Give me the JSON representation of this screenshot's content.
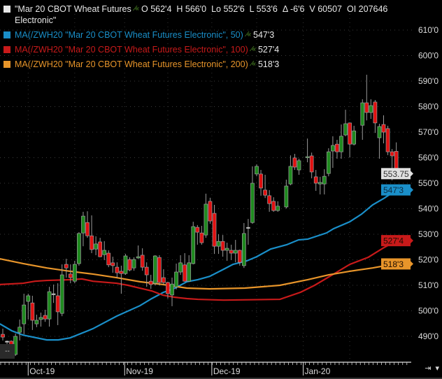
{
  "legend": {
    "main": {
      "color": "#e6e6e6",
      "text_line1": "\"Mar 20 CBOT Wheat Futures",
      "text_line2": "Electronic\"",
      "icon": "trend-indicator-icon",
      "stats": [
        {
          "key": "O",
          "value": "562'4"
        },
        {
          "key": "H",
          "value": "566'0"
        },
        {
          "key": "Lo",
          "value": "552'6"
        },
        {
          "key": "L",
          "value": "553'6"
        },
        {
          "key": "Δ",
          "value": "-6'6"
        },
        {
          "key": "V",
          "value": "60507"
        },
        {
          "key": "OI",
          "value": "207646"
        }
      ]
    },
    "ma": [
      {
        "label": "MA(/ZWH20 \"Mar 20 CBOT Wheat Futures Electronic\", 50)",
        "value": "547'3",
        "color": "#1a8fc9"
      },
      {
        "label": "MA(/ZWH20 \"Mar 20 CBOT Wheat Futures Electronic\", 100)",
        "value": "527'4",
        "color": "#c81a1a"
      },
      {
        "label": "MA(/ZWH20 \"Mar 20 CBOT Wheat Futures Electronic\", 200)",
        "value": "518'3",
        "color": "#e8952a"
      }
    ]
  },
  "corner_label": "--",
  "bottom_controls": {
    "zoom_icon": "expand-axis-icon",
    "menu_icon": "dropdown-arrow-icon",
    "zoom_glyph": "⇥",
    "menu_glyph": "▾"
  },
  "chart_data": {
    "type": "candlestick",
    "ylim": [
      486,
      612
    ],
    "y_ticks": [
      "610'0",
      "600'0",
      "590'0",
      "580'0",
      "570'0",
      "560'0",
      "550'0",
      "540'0",
      "530'0",
      "520'0",
      "510'0",
      "500'0",
      "490'0"
    ],
    "y_tick_values": [
      610,
      600,
      590,
      580,
      570,
      560,
      550,
      540,
      530,
      520,
      510,
      500,
      490
    ],
    "x_labels": [
      {
        "label": "Oct-19",
        "at": 6
      },
      {
        "label": "Nov-19",
        "at": 28.8
      },
      {
        "label": "Dec-19",
        "at": 49.4
      },
      {
        "label": "Jan-20",
        "at": 71
      }
    ],
    "up_color": "#1f8a1f",
    "down_color": "#e01010",
    "last_price": {
      "label": "553.75",
      "value": 553.75,
      "color": "#e0e0e0"
    },
    "ma_markers": [
      {
        "label": "547'3",
        "value": 547.375,
        "color": "#1a8fc9"
      },
      {
        "label": "527'4",
        "value": 527.5,
        "color": "#c81a1a"
      },
      {
        "label": "518'3",
        "value": 518.375,
        "color": "#e8952a"
      }
    ],
    "candles": [
      [
        490.8,
        493.0,
        488.4,
        489.7
      ],
      [
        488.1,
        488.4,
        486.2,
        488.1
      ],
      [
        488.1,
        488.4,
        484.0,
        485.6
      ],
      [
        482.9,
        491.1,
        482.3,
        490.0
      ],
      [
        491.6,
        496.6,
        488.4,
        493.6
      ],
      [
        494.9,
        506.7,
        490.8,
        502.3
      ],
      [
        503.7,
        506.7,
        496.6,
        505.9
      ],
      [
        503.1,
        505.9,
        492.5,
        496.3
      ],
      [
        494.9,
        498.5,
        493.6,
        496.3
      ],
      [
        496.6,
        499.3,
        493.8,
        497.4
      ],
      [
        498.2,
        500.4,
        495.7,
        496.8
      ],
      [
        496.8,
        509.4,
        493.8,
        507.5
      ],
      [
        506.7,
        510.3,
        503.1,
        506.7
      ],
      [
        505.9,
        510.8,
        494.4,
        499.6
      ],
      [
        499.0,
        518.2,
        497.9,
        514.1
      ],
      [
        518.2,
        520.4,
        513.0,
        516.8
      ],
      [
        514.4,
        518.2,
        510.8,
        513.0
      ],
      [
        511.6,
        519.6,
        510.8,
        518.2
      ],
      [
        518.5,
        530.8,
        517.7,
        530.3
      ],
      [
        530.5,
        538.8,
        525.3,
        537.1
      ],
      [
        534.6,
        539.0,
        528.6,
        529.4
      ],
      [
        529.4,
        537.4,
        522.6,
        524.0
      ],
      [
        524.2,
        529.2,
        521.8,
        526.2
      ],
      [
        527.0,
        528.6,
        521.0,
        521.2
      ],
      [
        522.0,
        527.3,
        519.9,
        523.7
      ],
      [
        522.6,
        523.7,
        517.1,
        518.0
      ],
      [
        518.8,
        521.2,
        514.9,
        517.7
      ],
      [
        517.1,
        519.0,
        513.0,
        514.9
      ],
      [
        515.5,
        517.7,
        506.7,
        514.6
      ],
      [
        514.6,
        522.3,
        514.1,
        521.5
      ],
      [
        520.1,
        521.0,
        515.5,
        516.0
      ],
      [
        516.8,
        521.0,
        515.7,
        520.1
      ],
      [
        520.7,
        525.6,
        520.4,
        521.2
      ],
      [
        521.8,
        524.5,
        515.7,
        517.1
      ],
      [
        517.1,
        519.0,
        509.4,
        514.1
      ],
      [
        511.6,
        514.1,
        508.6,
        510.3
      ],
      [
        510.8,
        521.8,
        510.0,
        521.5
      ],
      [
        520.9,
        521.8,
        510.0,
        511.1
      ],
      [
        513.0,
        516.3,
        510.3,
        511.1
      ],
      [
        511.1,
        511.4,
        504.8,
        506.7
      ],
      [
        506.2,
        513.0,
        501.8,
        510.5
      ],
      [
        509.4,
        518.5,
        508.4,
        515.2
      ],
      [
        515.2,
        521.8,
        514.1,
        518.8
      ],
      [
        518.0,
        522.6,
        511.4,
        511.6
      ],
      [
        511.6,
        521.8,
        511.4,
        518.8
      ],
      [
        518.5,
        534.9,
        518.2,
        533.0
      ],
      [
        532.7,
        533.6,
        525.9,
        530.8
      ],
      [
        530.5,
        533.3,
        525.9,
        526.7
      ],
      [
        529.7,
        545.9,
        528.6,
        541.8
      ],
      [
        542.9,
        544.3,
        534.1,
        535.2
      ],
      [
        538.2,
        541.5,
        522.3,
        525.3
      ],
      [
        525.3,
        530.0,
        522.3,
        527.2
      ],
      [
        527.2,
        529.7,
        521.2,
        523.7
      ],
      [
        523.7,
        526.7,
        519.6,
        524.5
      ],
      [
        523.7,
        525.9,
        519.9,
        522.6
      ],
      [
        522.6,
        527.8,
        519.0,
        523.7
      ],
      [
        523.7,
        524.0,
        517.7,
        519.0
      ],
      [
        517.7,
        534.4,
        516.8,
        530.3
      ],
      [
        532.7,
        536.0,
        525.9,
        532.7
      ],
      [
        534.6,
        556.6,
        534.1,
        550.0
      ],
      [
        553.6,
        557.4,
        552.7,
        556.6
      ],
      [
        553.6,
        555.2,
        545.1,
        548.1
      ],
      [
        547.3,
        553.3,
        544.2,
        545.3
      ],
      [
        545.1,
        547.3,
        538.8,
        542.0
      ],
      [
        542.9,
        544.5,
        538.8,
        539.3
      ],
      [
        539.3,
        542.9,
        538.8,
        541.0
      ],
      null,
      [
        540.7,
        551.4,
        540.1,
        548.9
      ],
      [
        549.7,
        560.9,
        549.2,
        556.6
      ],
      [
        559.9,
        561.5,
        555.2,
        556.3
      ],
      [
        555.2,
        559.6,
        553.3,
        558.8
      ],
      null,
      [
        560.1,
        567.5,
        558.2,
        560.4
      ],
      [
        560.7,
        562.0,
        551.9,
        554.4
      ],
      [
        552.5,
        555.2,
        547.0,
        550.0
      ],
      [
        549.7,
        552.5,
        545.6,
        550.3
      ],
      [
        549.7,
        555.5,
        545.6,
        552.7
      ],
      [
        553.8,
        563.7,
        552.7,
        562.3
      ],
      [
        562.6,
        568.4,
        556.0,
        564.8
      ],
      [
        565.3,
        567.0,
        559.6,
        562.3
      ],
      [
        562.3,
        573.0,
        559.6,
        568.4
      ],
      [
        568.9,
        578.8,
        568.4,
        573.3
      ],
      [
        573.6,
        573.8,
        560.1,
        565.3
      ],
      [
        565.3,
        572.5,
        564.8,
        570.5
      ],
      null,
      [
        572.7,
        582.9,
        567.0,
        581.5
      ],
      [
        581.5,
        592.5,
        574.6,
        577.7
      ],
      [
        577.7,
        582.9,
        575.2,
        580.4
      ],
      [
        581.8,
        582.6,
        569.7,
        573.6
      ],
      [
        567.8,
        573.3,
        559.6,
        572.2
      ],
      [
        573.0,
        576.6,
        565.6,
        570.0
      ],
      [
        571.4,
        572.5,
        561.0,
        562.3
      ],
      [
        562.3,
        563.4,
        551.1,
        560.7
      ],
      [
        562.5,
        566.0,
        552.75,
        553.75
      ]
    ],
    "moving_averages": [
      {
        "name": "MA 50",
        "color": "#1a8fc9",
        "points": [
          [
            -0.7,
            494.9
          ],
          [
            2.1,
            492.2
          ],
          [
            4.8,
            490.5
          ],
          [
            10.4,
            488.6
          ],
          [
            13.1,
            488.6
          ],
          [
            15.9,
            489.4
          ],
          [
            21.3,
            493.0
          ],
          [
            26.9,
            497.9
          ],
          [
            32.4,
            502.0
          ],
          [
            35.2,
            504.8
          ],
          [
            37.9,
            507.2
          ],
          [
            40.7,
            508.9
          ],
          [
            43.5,
            511.4
          ],
          [
            46.1,
            512.2
          ],
          [
            48.9,
            513.5
          ],
          [
            52.2,
            516.3
          ],
          [
            54.4,
            518.2
          ],
          [
            57.7,
            519.6
          ],
          [
            60.0,
            521.2
          ],
          [
            63.3,
            524.2
          ],
          [
            67.1,
            525.9
          ],
          [
            69.9,
            527.8
          ],
          [
            72.1,
            528.1
          ],
          [
            76.5,
            530.5
          ],
          [
            78.2,
            532.2
          ],
          [
            82.0,
            534.9
          ],
          [
            84.8,
            537.9
          ],
          [
            87.4,
            541.5
          ],
          [
            90.2,
            544.2
          ],
          [
            93.1,
            547.4
          ]
        ]
      },
      {
        "name": "MA 100",
        "color": "#c81a1a",
        "points": [
          [
            -0.7,
            510.3
          ],
          [
            4.8,
            510.8
          ],
          [
            7.6,
            511.6
          ],
          [
            10.4,
            511.9
          ],
          [
            15.9,
            512.2
          ],
          [
            18.7,
            512.5
          ],
          [
            21.3,
            511.6
          ],
          [
            26.9,
            510.8
          ],
          [
            29.6,
            510.0
          ],
          [
            32.4,
            508.9
          ],
          [
            35.2,
            507.8
          ],
          [
            37.9,
            506.1
          ],
          [
            40.7,
            505.3
          ],
          [
            43.5,
            504.8
          ],
          [
            46.1,
            504.5
          ],
          [
            52.2,
            504.2
          ],
          [
            65.5,
            504.5
          ],
          [
            70.4,
            507.3
          ],
          [
            73.7,
            510.0
          ],
          [
            78.2,
            514.4
          ],
          [
            82.0,
            518.2
          ],
          [
            86.4,
            521.0
          ],
          [
            89.8,
            524.5
          ],
          [
            93.1,
            527.5
          ]
        ]
      },
      {
        "name": "MA 200",
        "color": "#e8952a",
        "points": [
          [
            -0.7,
            520.4
          ],
          [
            4.8,
            518.5
          ],
          [
            10.4,
            516.8
          ],
          [
            15.9,
            515.5
          ],
          [
            21.3,
            514.4
          ],
          [
            26.9,
            513.0
          ],
          [
            32.4,
            511.4
          ],
          [
            37.9,
            510.3
          ],
          [
            43.5,
            508.9
          ],
          [
            48.9,
            508.6
          ],
          [
            57.2,
            508.9
          ],
          [
            65.5,
            510.0
          ],
          [
            72.1,
            512.2
          ],
          [
            77.0,
            514.1
          ],
          [
            82.0,
            515.5
          ],
          [
            87.4,
            516.8
          ],
          [
            93.1,
            518.5
          ]
        ]
      }
    ]
  }
}
